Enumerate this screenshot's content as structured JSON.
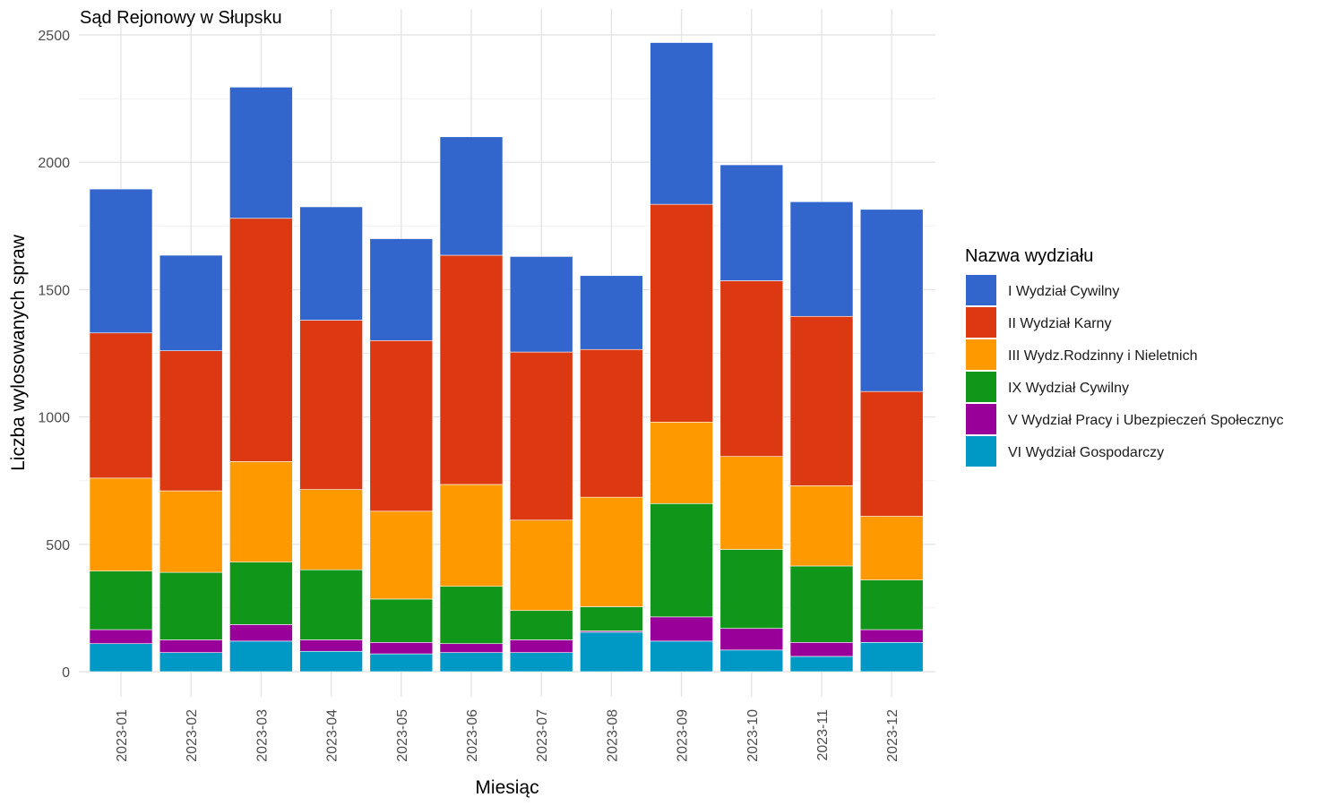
{
  "chart_data": {
    "type": "bar",
    "stacked": true,
    "title": "Sąd Rejonowy w Słupsku",
    "xlabel": "Miesiąc",
    "ylabel": "Liczba wylosowanych spraw",
    "ylim": [
      0,
      2500
    ],
    "yticks": [
      0,
      500,
      1000,
      1500,
      2000,
      2500
    ],
    "grid": true,
    "legend_title": "Nazwa wydziału",
    "legend_position": "right",
    "categories": [
      "2023-01",
      "2023-02",
      "2023-03",
      "2023-04",
      "2023-05",
      "2023-06",
      "2023-07",
      "2023-08",
      "2023-09",
      "2023-10",
      "2023-11",
      "2023-12"
    ],
    "series": [
      {
        "name": "VI Wydział Gospodarczy",
        "color": "#0099C6",
        "values": [
          110,
          75,
          120,
          80,
          70,
          75,
          75,
          155,
          120,
          85,
          60,
          115
        ]
      },
      {
        "name": "V Wydział Pracy i Ubezpieczeń Społecznyc",
        "color": "#990099",
        "values": [
          55,
          50,
          65,
          45,
          45,
          35,
          50,
          5,
          95,
          85,
          55,
          50
        ]
      },
      {
        "name": "IX Wydział Cywilny",
        "color": "#109618",
        "values": [
          230,
          265,
          245,
          275,
          170,
          225,
          115,
          95,
          445,
          310,
          300,
          195
        ]
      },
      {
        "name": "III Wydz.Rodzinny i Nieletnich",
        "color": "#FF9900",
        "values": [
          365,
          320,
          395,
          315,
          345,
          400,
          355,
          430,
          320,
          365,
          315,
          250
        ]
      },
      {
        "name": "II Wydział Karny",
        "color": "#DC3912",
        "values": [
          570,
          550,
          955,
          665,
          670,
          900,
          660,
          580,
          855,
          690,
          665,
          490
        ]
      },
      {
        "name": "I Wydział Cywilny",
        "color": "#3366CC",
        "values": [
          565,
          375,
          515,
          445,
          400,
          465,
          375,
          290,
          635,
          455,
          450,
          715
        ]
      }
    ],
    "legend_order": [
      "I Wydział Cywilny",
      "II Wydział Karny",
      "III Wydz.Rodzinny i Nieletnich",
      "IX Wydział Cywilny",
      "V Wydział Pracy i Ubezpieczeń Społecznyc",
      "VI Wydział Gospodarczy"
    ]
  }
}
